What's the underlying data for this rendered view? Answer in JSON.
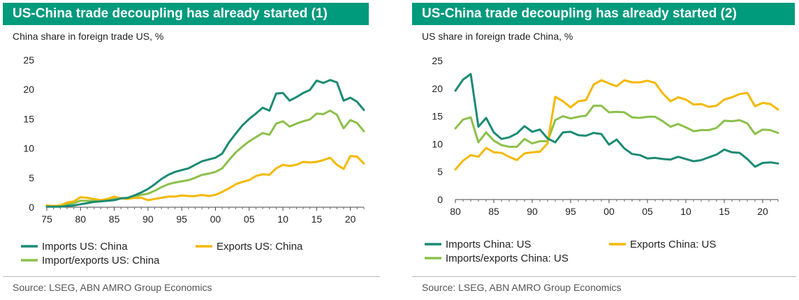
{
  "colors": {
    "header_bg": "#009a7c",
    "teal": "#1b8a73",
    "yellow": "#f5b800",
    "green": "#8cc04b"
  },
  "left": {
    "title": "US-China trade decoupling has already started (1)",
    "subtitle": "China share in foreign trade US, %",
    "source": "Source: LSEG, ABN AMRO Group Economics"
  },
  "right": {
    "title": "US-China trade decoupling has already started (2)",
    "subtitle": "US share in foreign trade China, %",
    "source": "Source: LSEG, ABN AMRO Group Economics"
  },
  "chart_data": [
    {
      "type": "line",
      "title": "US-China trade decoupling has already started (1)",
      "ylabel": "China share in foreign trade US, %",
      "xlim": [
        1975,
        2022
      ],
      "ylim": [
        0,
        25
      ],
      "x_ticks": [
        1975,
        1980,
        1985,
        1990,
        1995,
        2000,
        2005,
        2010,
        2015,
        2020
      ],
      "x_tick_labels": [
        "75",
        "80",
        "85",
        "90",
        "95",
        "00",
        "05",
        "10",
        "15",
        "20"
      ],
      "y_ticks": [
        0,
        5,
        10,
        15,
        20,
        25
      ],
      "y_tick_labels": [
        "0",
        "5",
        "10",
        "15",
        "20",
        "25"
      ],
      "legend_position": "bottom",
      "grid": false,
      "x": [
        1975,
        1976,
        1977,
        1978,
        1979,
        1980,
        1981,
        1982,
        1983,
        1984,
        1985,
        1986,
        1987,
        1988,
        1989,
        1990,
        1991,
        1992,
        1993,
        1994,
        1995,
        1996,
        1997,
        1998,
        1999,
        2000,
        2001,
        2002,
        2003,
        2004,
        2005,
        2006,
        2007,
        2008,
        2009,
        2010,
        2011,
        2012,
        2013,
        2014,
        2015,
        2016,
        2017,
        2018,
        2019,
        2020,
        2021,
        2022
      ],
      "series": [
        {
          "name": "Imports US: China",
          "color": "#1b8a73",
          "values": [
            0.1,
            0.1,
            0.1,
            0.2,
            0.3,
            0.5,
            0.7,
            0.9,
            1.0,
            1.1,
            1.2,
            1.5,
            1.6,
            2.0,
            2.5,
            3.1,
            3.9,
            4.8,
            5.5,
            6.0,
            6.3,
            6.6,
            7.2,
            7.8,
            8.1,
            8.4,
            9.1,
            11.0,
            12.5,
            13.9,
            15.0,
            15.9,
            16.9,
            16.4,
            19.3,
            19.4,
            18.1,
            18.7,
            19.4,
            19.9,
            21.5,
            21.1,
            21.6,
            21.2,
            18.1,
            18.6,
            17.9,
            16.5
          ]
        },
        {
          "name": "Exports US: China",
          "color": "#f5b800",
          "values": [
            0.3,
            0.2,
            0.3,
            0.8,
            1.0,
            1.7,
            1.6,
            1.4,
            1.2,
            1.4,
            1.8,
            1.5,
            1.4,
            1.6,
            1.6,
            1.2,
            1.4,
            1.6,
            1.8,
            1.8,
            2.0,
            1.9,
            1.9,
            2.1,
            1.9,
            2.1,
            2.6,
            3.2,
            3.9,
            4.3,
            4.6,
            5.3,
            5.6,
            5.5,
            6.6,
            7.2,
            7.0,
            7.2,
            7.7,
            7.6,
            7.7,
            8.0,
            8.4,
            7.2,
            6.5,
            8.7,
            8.6,
            7.4
          ]
        },
        {
          "name": "Import/exports US: China",
          "color": "#8cc04b",
          "values": [
            0.2,
            0.2,
            0.2,
            0.5,
            0.7,
            1.1,
            1.1,
            1.1,
            1.1,
            1.2,
            1.4,
            1.5,
            1.5,
            1.8,
            2.1,
            2.3,
            2.8,
            3.4,
            3.9,
            4.2,
            4.4,
            4.6,
            5.0,
            5.5,
            5.7,
            6.0,
            6.6,
            8.0,
            9.3,
            10.3,
            11.2,
            11.9,
            12.6,
            12.3,
            14.2,
            14.6,
            13.7,
            14.2,
            14.6,
            14.9,
            15.9,
            15.8,
            16.4,
            15.7,
            13.4,
            14.8,
            14.3,
            12.9
          ]
        }
      ]
    },
    {
      "type": "line",
      "title": "US-China trade decoupling has already started (2)",
      "ylabel": "US share in foreign trade China, %",
      "xlim": [
        1980,
        2022
      ],
      "ylim": [
        0,
        25
      ],
      "x_ticks": [
        1980,
        1985,
        1990,
        1995,
        2000,
        2005,
        2010,
        2015,
        2020
      ],
      "x_tick_labels": [
        "80",
        "85",
        "90",
        "95",
        "00",
        "05",
        "10",
        "15",
        "20"
      ],
      "y_ticks": [
        0,
        5,
        10,
        15,
        20,
        25
      ],
      "y_tick_labels": [
        "0",
        "5",
        "10",
        "15",
        "20",
        "25"
      ],
      "legend_position": "bottom",
      "grid": false,
      "x": [
        1980,
        1981,
        1982,
        1983,
        1984,
        1985,
        1986,
        1987,
        1988,
        1989,
        1990,
        1991,
        1992,
        1993,
        1994,
        1995,
        1996,
        1997,
        1998,
        1999,
        2000,
        2001,
        2002,
        2003,
        2004,
        2005,
        2006,
        2007,
        2008,
        2009,
        2010,
        2011,
        2012,
        2013,
        2014,
        2015,
        2016,
        2017,
        2018,
        2019,
        2020,
        2021,
        2022
      ],
      "series": [
        {
          "name": "Imports China: US",
          "color": "#1b8a73",
          "values": [
            19.6,
            21.6,
            22.6,
            13.1,
            14.7,
            12.1,
            10.9,
            11.2,
            11.9,
            13.2,
            12.2,
            12.6,
            11.0,
            10.3,
            12.1,
            12.2,
            11.6,
            11.5,
            12.0,
            11.8,
            9.9,
            10.8,
            9.2,
            8.2,
            8.0,
            7.4,
            7.5,
            7.3,
            7.2,
            7.7,
            7.3,
            6.9,
            7.1,
            7.6,
            8.1,
            9.0,
            8.5,
            8.4,
            7.3,
            5.9,
            6.6,
            6.7,
            6.5
          ]
        },
        {
          "name": "Exports China: US",
          "color": "#f5b800",
          "values": [
            5.4,
            7.0,
            8.0,
            7.7,
            9.3,
            8.5,
            8.4,
            7.7,
            7.1,
            8.3,
            8.5,
            8.6,
            10.1,
            18.5,
            17.7,
            16.6,
            17.7,
            17.9,
            20.7,
            21.5,
            20.9,
            20.4,
            21.5,
            21.1,
            21.1,
            21.4,
            21.0,
            19.1,
            17.7,
            18.4,
            18.0,
            17.1,
            17.2,
            16.7,
            16.9,
            18.0,
            18.4,
            19.0,
            19.2,
            16.8,
            17.4,
            17.2,
            16.2
          ]
        },
        {
          "name": "Imports/exports China: US",
          "color": "#8cc04b",
          "values": [
            12.8,
            14.4,
            14.8,
            10.3,
            12.1,
            10.6,
            9.8,
            9.5,
            9.5,
            10.9,
            10.1,
            10.5,
            10.5,
            14.3,
            15.0,
            14.6,
            14.9,
            15.1,
            16.9,
            16.9,
            15.7,
            15.8,
            15.7,
            14.8,
            14.7,
            14.9,
            14.9,
            14.1,
            13.1,
            13.6,
            13.0,
            12.3,
            12.5,
            12.5,
            12.9,
            14.2,
            14.1,
            14.3,
            13.7,
            11.8,
            12.6,
            12.5,
            12.0
          ]
        }
      ]
    }
  ]
}
